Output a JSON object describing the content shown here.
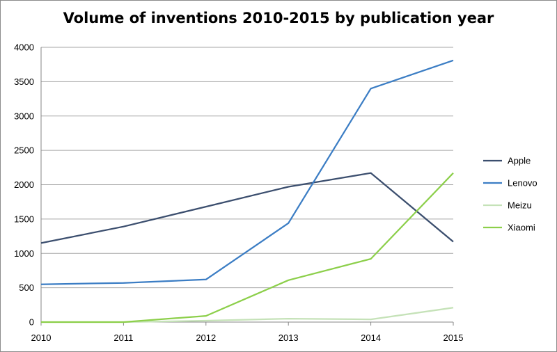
{
  "chart_data": {
    "type": "line",
    "title": "Volume of inventions 2010-2015 by publication year",
    "xlabel": "",
    "ylabel": "",
    "x": [
      "2010",
      "2011",
      "2012",
      "2013",
      "2014",
      "2015"
    ],
    "ylim": [
      0,
      4000
    ],
    "yticks": [
      "0",
      "500",
      "1000",
      "1500",
      "2000",
      "2500",
      "3000",
      "3500",
      "4000"
    ],
    "grid": true,
    "legend": "right",
    "series": [
      {
        "name": "Apple",
        "color": "#3b4e6e",
        "values": [
          1150,
          1390,
          1680,
          1970,
          2170,
          1170
        ]
      },
      {
        "name": "Lenovo",
        "color": "#3b7dc4",
        "values": [
          550,
          570,
          620,
          1440,
          3400,
          3810
        ]
      },
      {
        "name": "Meizu",
        "color": "#c5e2b8",
        "values": [
          0,
          0,
          20,
          50,
          40,
          210
        ]
      },
      {
        "name": "Xiaomi",
        "color": "#8ccf4a",
        "values": [
          0,
          0,
          90,
          610,
          920,
          2170
        ]
      }
    ]
  }
}
